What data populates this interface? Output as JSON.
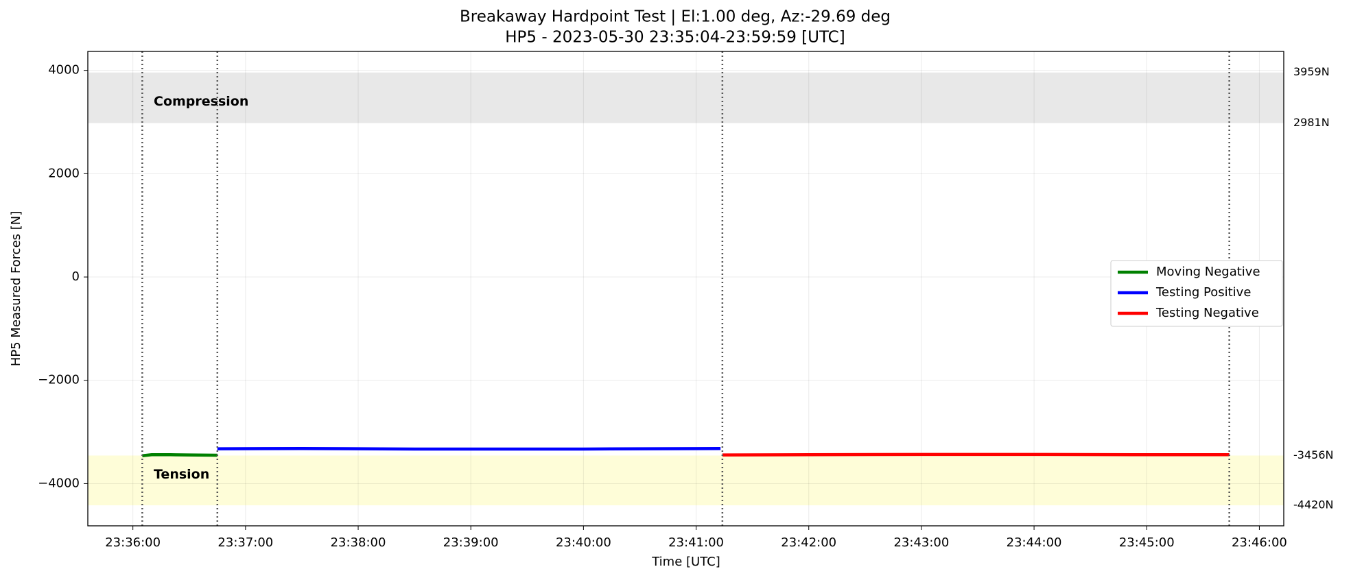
{
  "chart_data": {
    "type": "line",
    "title": "Breakaway Hardpoint Test | El:1.00 deg, Az:-29.69 deg",
    "subtitle": "HP5 - 2023-05-30 23:35:04-23:59:59 [UTC]",
    "x_label": "Time [UTC]",
    "y_label": "HP5 Measured Forces [N]",
    "xlim": [
      "23:35:36",
      "23:46:13"
    ],
    "xticks": [
      "23:36:00",
      "23:37:00",
      "23:38:00",
      "23:39:00",
      "23:40:00",
      "23:41:00",
      "23:42:00",
      "23:43:00",
      "23:44:00",
      "23:45:00",
      "23:46:00"
    ],
    "ylim": [
      -4817,
      4367
    ],
    "yticks": [
      -4000,
      -2000,
      0,
      2000,
      4000
    ],
    "grid": true,
    "legend": "center right",
    "bands": [
      {
        "name": "Compression",
        "color": "#e8e8e8",
        "lower": {
          "value": 2981,
          "label": "2981N"
        },
        "upper": {
          "value": 3959,
          "label": "3959N"
        }
      },
      {
        "name": "Tension",
        "color": "#fefdd8",
        "lower": {
          "value": -4420,
          "label": "-4420N"
        },
        "upper": {
          "value": -3456,
          "label": "-3456N"
        }
      }
    ],
    "vlines": [
      "23:36:05",
      "23:36:45",
      "23:41:14",
      "23:45:44"
    ],
    "series": [
      {
        "name": "Moving Negative",
        "color": "#008000",
        "x": [
          "23:36:05",
          "23:36:10",
          "23:36:20",
          "23:36:30",
          "23:36:45"
        ],
        "values": [
          -3460,
          -3440,
          -3440,
          -3445,
          -3450
        ]
      },
      {
        "name": "Testing Positive",
        "color": "#0000ff",
        "x": [
          "23:36:45",
          "23:37:30",
          "23:38:30",
          "23:40:00",
          "23:41:13"
        ],
        "values": [
          -3325,
          -3320,
          -3330,
          -3330,
          -3320
        ]
      },
      {
        "name": "Testing Negative",
        "color": "#ff0000",
        "x": [
          "23:41:14",
          "23:42:00",
          "23:43:00",
          "23:44:00",
          "23:45:00",
          "23:45:44"
        ],
        "values": [
          -3445,
          -3440,
          -3435,
          -3435,
          -3440,
          -3440
        ]
      }
    ]
  }
}
